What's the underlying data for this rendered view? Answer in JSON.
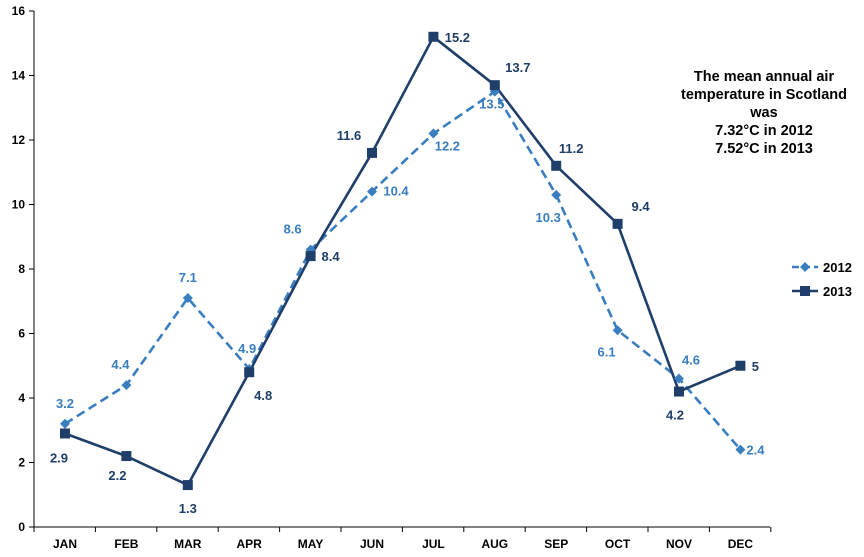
{
  "chart_data": {
    "type": "line",
    "title": "",
    "xlabel": "",
    "ylabel": "",
    "categories": [
      "JAN",
      "FEB",
      "MAR",
      "APR",
      "MAY",
      "JUN",
      "JUL",
      "AUG",
      "SEP",
      "OCT",
      "NOV",
      "DEC"
    ],
    "ylim": [
      0,
      16
    ],
    "yticks": [
      0,
      2,
      4,
      6,
      8,
      10,
      12,
      14,
      16
    ],
    "grid": false,
    "legend": "right",
    "series": [
      {
        "name": "2012",
        "values": [
          3.2,
          4.4,
          7.1,
          4.9,
          8.6,
          10.4,
          12.2,
          13.5,
          10.3,
          6.1,
          4.6,
          2.4
        ],
        "color": "#3a7ebf",
        "line_style": "dashed",
        "marker": "diamond"
      },
      {
        "name": "2013",
        "values": [
          2.9,
          2.2,
          1.3,
          4.8,
          8.4,
          11.6,
          15.2,
          13.7,
          11.2,
          9.4,
          4.2,
          5
        ],
        "color": "#1f3e6a",
        "line_style": "solid",
        "marker": "square"
      }
    ],
    "annotation": [
      "The mean annual air",
      "temperature in Scotland",
      "was",
      "7.32°C in 2012",
      "7.52°C in 2013"
    ]
  }
}
